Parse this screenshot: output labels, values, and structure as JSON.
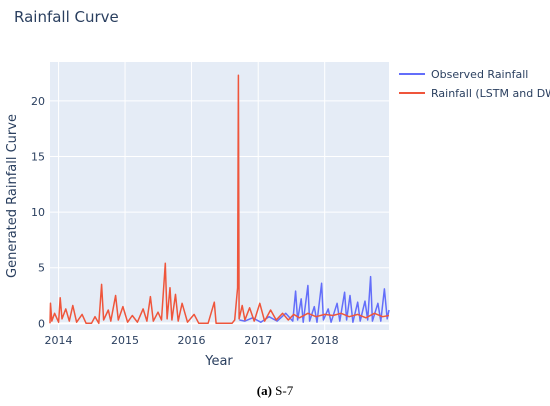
{
  "chart_data": {
    "type": "line",
    "title": "Rainfall Curve",
    "xlabel": "Year",
    "ylabel": "Generated Rainfall Curve",
    "xlim": [
      "2013-11-15",
      "2018-12-20"
    ],
    "ylim": [
      -0.6,
      23.5
    ],
    "x_ticks": [
      "2014",
      "2015",
      "2016",
      "2017",
      "2018"
    ],
    "y_ticks": [
      0,
      5,
      10,
      15,
      20
    ],
    "grid": true,
    "legend_position": "top-right",
    "series": [
      {
        "name": "Observed Rainfall",
        "color": "#636efa",
        "points": [
          [
            "2016-09-20",
            0.3
          ],
          [
            "2016-10-20",
            0.2
          ],
          [
            "2016-12-01",
            0.5
          ],
          [
            "2017-01-15",
            0.1
          ],
          [
            "2017-03-01",
            0.6
          ],
          [
            "2017-04-15",
            0.2
          ],
          [
            "2017-06-01",
            0.9
          ],
          [
            "2017-07-10",
            0.2
          ],
          [
            "2017-07-25",
            2.9
          ],
          [
            "2017-08-05",
            0.3
          ],
          [
            "2017-08-25",
            2.2
          ],
          [
            "2017-09-05",
            0.1
          ],
          [
            "2017-10-01",
            3.4
          ],
          [
            "2017-10-10",
            0.2
          ],
          [
            "2017-11-05",
            1.5
          ],
          [
            "2017-11-20",
            0.1
          ],
          [
            "2017-12-15",
            3.6
          ],
          [
            "2017-12-25",
            0.3
          ],
          [
            "2018-01-20",
            1.3
          ],
          [
            "2018-02-05",
            0.1
          ],
          [
            "2018-03-10",
            1.8
          ],
          [
            "2018-03-25",
            0.2
          ],
          [
            "2018-04-20",
            2.8
          ],
          [
            "2018-05-01",
            0.3
          ],
          [
            "2018-05-20",
            2.5
          ],
          [
            "2018-06-05",
            0.1
          ],
          [
            "2018-07-01",
            1.9
          ],
          [
            "2018-07-15",
            0.2
          ],
          [
            "2018-08-10",
            2.0
          ],
          [
            "2018-08-25",
            0.3
          ],
          [
            "2018-09-10",
            4.2
          ],
          [
            "2018-09-20",
            0.2
          ],
          [
            "2018-10-20",
            1.8
          ],
          [
            "2018-11-05",
            0.2
          ],
          [
            "2018-11-25",
            3.1
          ],
          [
            "2018-12-10",
            0.4
          ],
          [
            "2018-12-20",
            1.2
          ]
        ]
      },
      {
        "name": "Rainfall (LSTM and DWT)",
        "color": "#ef553b",
        "points": [
          [
            "2013-11-15",
            0.0
          ],
          [
            "2013-11-18",
            1.8
          ],
          [
            "2013-11-25",
            0.2
          ],
          [
            "2013-12-10",
            0.9
          ],
          [
            "2014-01-01",
            0.1
          ],
          [
            "2014-01-10",
            2.3
          ],
          [
            "2014-01-20",
            0.4
          ],
          [
            "2014-02-10",
            1.3
          ],
          [
            "2014-03-01",
            0.2
          ],
          [
            "2014-03-20",
            1.6
          ],
          [
            "2014-04-10",
            0.1
          ],
          [
            "2014-05-10",
            0.8
          ],
          [
            "2014-06-01",
            0.0
          ],
          [
            "2014-07-01",
            0.0
          ],
          [
            "2014-07-20",
            0.6
          ],
          [
            "2014-08-10",
            0.0
          ],
          [
            "2014-08-25",
            3.5
          ],
          [
            "2014-09-05",
            0.3
          ],
          [
            "2014-10-01",
            1.2
          ],
          [
            "2014-10-15",
            0.2
          ],
          [
            "2014-11-10",
            2.5
          ],
          [
            "2014-11-25",
            0.3
          ],
          [
            "2014-12-20",
            1.5
          ],
          [
            "2015-01-15",
            0.1
          ],
          [
            "2015-02-10",
            0.7
          ],
          [
            "2015-03-10",
            0.1
          ],
          [
            "2015-04-10",
            1.3
          ],
          [
            "2015-05-01",
            0.2
          ],
          [
            "2015-05-20",
            2.4
          ],
          [
            "2015-06-05",
            0.2
          ],
          [
            "2015-07-01",
            1.0
          ],
          [
            "2015-07-20",
            0.3
          ],
          [
            "2015-08-10",
            5.4
          ],
          [
            "2015-08-20",
            0.4
          ],
          [
            "2015-09-05",
            3.2
          ],
          [
            "2015-09-15",
            0.3
          ],
          [
            "2015-10-05",
            2.6
          ],
          [
            "2015-10-20",
            0.2
          ],
          [
            "2015-11-10",
            1.8
          ],
          [
            "2015-12-10",
            0.1
          ],
          [
            "2016-01-15",
            0.8
          ],
          [
            "2016-02-10",
            0.0
          ],
          [
            "2016-04-01",
            0.0
          ],
          [
            "2016-05-05",
            1.9
          ],
          [
            "2016-05-15",
            0.0
          ],
          [
            "2016-08-10",
            0.0
          ],
          [
            "2016-08-25",
            0.3
          ],
          [
            "2016-09-10",
            3.2
          ],
          [
            "2016-09-14",
            22.3
          ],
          [
            "2016-09-18",
            0.4
          ],
          [
            "2016-10-05",
            1.6
          ],
          [
            "2016-10-20",
            0.3
          ],
          [
            "2016-11-15",
            1.4
          ],
          [
            "2016-12-10",
            0.2
          ],
          [
            "2017-01-10",
            1.8
          ],
          [
            "2017-02-05",
            0.2
          ],
          [
            "2017-03-10",
            1.2
          ],
          [
            "2017-04-10",
            0.3
          ],
          [
            "2017-05-15",
            0.9
          ],
          [
            "2017-06-15",
            0.3
          ],
          [
            "2017-07-15",
            0.8
          ],
          [
            "2017-08-15",
            0.5
          ],
          [
            "2017-10-01",
            0.9
          ],
          [
            "2017-11-15",
            0.6
          ],
          [
            "2018-01-01",
            0.8
          ],
          [
            "2018-02-15",
            0.7
          ],
          [
            "2018-04-01",
            0.9
          ],
          [
            "2018-05-15",
            0.6
          ],
          [
            "2018-07-01",
            0.8
          ],
          [
            "2018-08-15",
            0.5
          ],
          [
            "2018-10-01",
            0.9
          ],
          [
            "2018-11-15",
            0.6
          ],
          [
            "2018-12-20",
            0.7
          ]
        ]
      }
    ]
  },
  "caption": {
    "label": "(a)",
    "text": " S-7"
  }
}
